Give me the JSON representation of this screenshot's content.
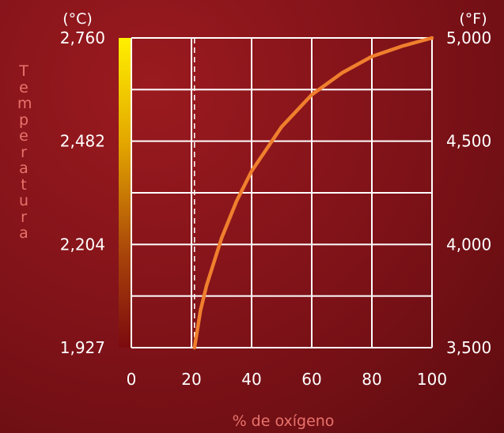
{
  "chart_data": {
    "type": "line",
    "title": "",
    "xlabel": "% de oxígeno",
    "ylabel": "Temperatura",
    "left_unit": "(°C)",
    "right_unit": "(°F)",
    "xlim": [
      0,
      100
    ],
    "ylim_f": [
      3500,
      5000
    ],
    "x_ticks": [
      "0",
      "20",
      "40",
      "60",
      "80",
      "100"
    ],
    "left_ticks": [
      "2,760",
      "2,482",
      "2,204",
      "1,927"
    ],
    "right_ticks": [
      "5,000",
      "4,500",
      "4,000",
      "3,500"
    ],
    "reference_line": {
      "x": 21,
      "style": "dashed"
    },
    "series": [
      {
        "color": "#f07f2e",
        "x": [
          21,
          23,
          25,
          30,
          35,
          40,
          50,
          60,
          70,
          80,
          90,
          100
        ],
        "y": [
          3500,
          3680,
          3800,
          4030,
          4210,
          4355,
          4570,
          4725,
          4830,
          4910,
          4960,
          5000
        ]
      }
    ],
    "grid": true,
    "colorbar": {
      "top": "#ffe000",
      "bottom": "#8a0c10"
    }
  }
}
